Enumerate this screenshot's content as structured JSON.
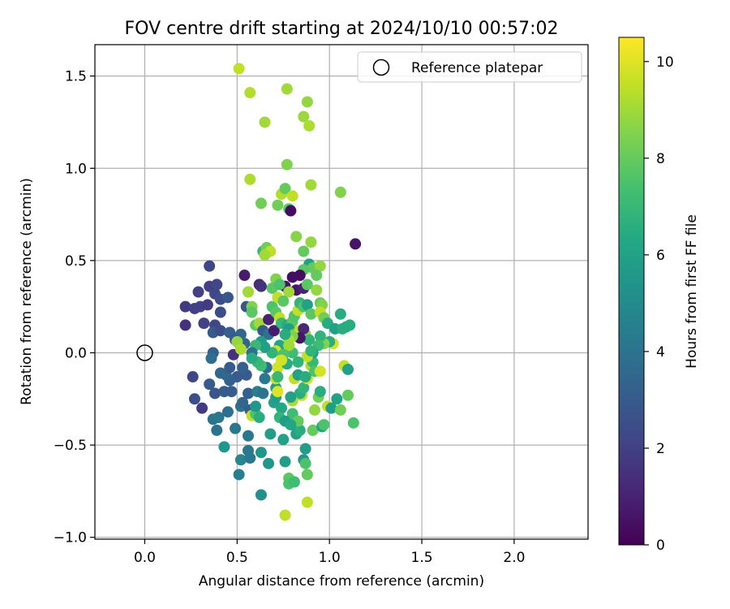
{
  "chart_data": {
    "type": "scatter",
    "title": "FOV centre drift starting at 2024/10/10 00:57:02",
    "xlabel": "Angular distance from reference (arcmin)",
    "ylabel": "Rotation from reference (arcmin)",
    "xlim": [
      -0.27,
      2.4
    ],
    "ylim": [
      -1.01,
      1.67
    ],
    "xticks": [
      0.0,
      0.5,
      1.0,
      1.5,
      2.0
    ],
    "xtick_labels": [
      "0.0",
      "0.5",
      "1.0",
      "1.5",
      "2.0"
    ],
    "yticks": [
      -1.0,
      -0.5,
      0.0,
      0.5,
      1.0,
      1.5
    ],
    "ytick_labels": [
      "−1.0",
      "−0.5",
      "0.0",
      "0.5",
      "1.0",
      "1.5"
    ],
    "grid": true,
    "legend": {
      "position": "top-right",
      "entries": [
        "Reference platepar"
      ]
    },
    "colorbar": {
      "label": "Hours from first FF file",
      "range": [
        0,
        10.5
      ],
      "ticks": [
        0,
        2,
        4,
        6,
        8,
        10
      ],
      "tick_labels": [
        "0",
        "2",
        "4",
        "6",
        "8",
        "10"
      ],
      "colormap": "viridis"
    },
    "reference_point": {
      "x": 0.0,
      "y": 0.0,
      "label": "Reference platepar"
    },
    "series": [
      {
        "name": "FOV centre drift",
        "points": [
          [
            0.51,
            1.54,
            9.5
          ],
          [
            0.57,
            1.41,
            9.3
          ],
          [
            0.77,
            1.43,
            9.0
          ],
          [
            0.88,
            1.36,
            8.8
          ],
          [
            0.86,
            1.28,
            8.9
          ],
          [
            0.89,
            1.23,
            9.2
          ],
          [
            0.65,
            1.25,
            9.0
          ],
          [
            0.77,
            1.02,
            8.5
          ],
          [
            0.57,
            0.94,
            9.2
          ],
          [
            0.9,
            0.91,
            9.0
          ],
          [
            1.06,
            0.87,
            8.5
          ],
          [
            0.74,
            0.86,
            9.3
          ],
          [
            0.63,
            0.81,
            8.2
          ],
          [
            0.72,
            0.8,
            8.2
          ],
          [
            0.76,
            0.89,
            8.0
          ],
          [
            0.8,
            0.85,
            9.5
          ],
          [
            0.78,
            0.78,
            7.8
          ],
          [
            0.79,
            0.77,
            0.4
          ],
          [
            1.14,
            0.59,
            0.6
          ],
          [
            0.82,
            0.63,
            8.6
          ],
          [
            0.86,
            0.55,
            8.0
          ],
          [
            0.9,
            0.6,
            8.8
          ],
          [
            0.64,
            0.55,
            7.0
          ],
          [
            0.66,
            0.57,
            8.2
          ],
          [
            0.68,
            0.55,
            9.5
          ],
          [
            0.65,
            0.53,
            9.0
          ],
          [
            0.89,
            0.48,
            6.0
          ],
          [
            0.91,
            0.46,
            8.0
          ],
          [
            0.95,
            0.47,
            8.8
          ],
          [
            0.86,
            0.45,
            7.8
          ],
          [
            0.54,
            0.42,
            0.8
          ],
          [
            0.62,
            0.37,
            1.2
          ],
          [
            0.71,
            0.4,
            8.5
          ],
          [
            0.76,
            0.36,
            0.5
          ],
          [
            0.8,
            0.41,
            0.4
          ],
          [
            0.84,
            0.42,
            0.4
          ],
          [
            0.82,
            0.34,
            0.6
          ],
          [
            0.86,
            0.35,
            1.0
          ],
          [
            0.88,
            0.37,
            7.8
          ],
          [
            0.93,
            0.34,
            8.8
          ],
          [
            0.93,
            0.42,
            8.0
          ],
          [
            0.78,
            0.33,
            9.0
          ],
          [
            0.69,
            0.35,
            7.8
          ],
          [
            0.73,
            0.37,
            7.5
          ],
          [
            0.56,
            0.33,
            9.0
          ],
          [
            0.63,
            0.36,
            1.5
          ],
          [
            0.35,
            0.47,
            2.2
          ],
          [
            0.35,
            0.36,
            2.0
          ],
          [
            0.39,
            0.37,
            2.2
          ],
          [
            0.29,
            0.33,
            2.0
          ],
          [
            0.22,
            0.25,
            1.8
          ],
          [
            0.3,
            0.25,
            2.0
          ],
          [
            0.27,
            0.24,
            2.0
          ],
          [
            0.34,
            0.26,
            1.8
          ],
          [
            0.38,
            0.32,
            2.2
          ],
          [
            0.41,
            0.29,
            2.5
          ],
          [
            0.45,
            0.3,
            2.8
          ],
          [
            0.41,
            0.22,
            2.5
          ],
          [
            0.38,
            0.15,
            2.2
          ],
          [
            0.32,
            0.16,
            2.0
          ],
          [
            0.22,
            0.15,
            1.5
          ],
          [
            0.37,
            0.11,
            3.0
          ],
          [
            0.41,
            0.12,
            2.5
          ],
          [
            0.46,
            0.11,
            3.2
          ],
          [
            0.49,
            0.08,
            3.0
          ],
          [
            0.52,
            0.1,
            3.5
          ],
          [
            0.55,
            0.25,
            2.8
          ],
          [
            0.58,
            0.25,
            8.5
          ],
          [
            0.58,
            0.22,
            7.8
          ],
          [
            0.6,
            0.15,
            7.8
          ],
          [
            0.62,
            0.16,
            9.0
          ],
          [
            0.64,
            0.12,
            3.0
          ],
          [
            0.67,
            0.1,
            4.0
          ],
          [
            0.67,
            0.18,
            1.0
          ],
          [
            0.7,
            0.12,
            0.8
          ],
          [
            0.69,
            0.25,
            7.5
          ],
          [
            0.71,
            0.22,
            7.8
          ],
          [
            0.73,
            0.19,
            9.5
          ],
          [
            0.74,
            0.16,
            7.0
          ],
          [
            0.77,
            0.15,
            6.5
          ],
          [
            0.79,
            0.14,
            9.0
          ],
          [
            0.8,
            0.17,
            7.8
          ],
          [
            0.81,
            0.2,
            7.6
          ],
          [
            0.83,
            0.23,
            9.5
          ],
          [
            0.84,
            0.27,
            6.8
          ],
          [
            0.86,
            0.25,
            7.5
          ],
          [
            0.88,
            0.26,
            6.0
          ],
          [
            0.9,
            0.21,
            7.8
          ],
          [
            0.95,
            0.27,
            8.0
          ],
          [
            0.96,
            0.26,
            8.5
          ],
          [
            0.95,
            0.22,
            9.5
          ],
          [
            0.97,
            0.19,
            8.2
          ],
          [
            0.99,
            0.16,
            6.5
          ],
          [
            1.03,
            0.13,
            6.0
          ],
          [
            1.06,
            0.21,
            6.5
          ],
          [
            1.07,
            0.13,
            6.5
          ],
          [
            1.09,
            0.14,
            6.5
          ],
          [
            1.11,
            0.15,
            6.5
          ],
          [
            0.72,
            0.3,
            9.5
          ],
          [
            0.75,
            0.28,
            7.8
          ],
          [
            0.78,
            0.13,
            5.8
          ],
          [
            0.81,
            0.1,
            8.2
          ],
          [
            0.84,
            0.12,
            9.5
          ],
          [
            0.87,
            0.1,
            8.8
          ],
          [
            0.89,
            0.07,
            6.8
          ],
          [
            0.86,
            0.13,
            1.2
          ],
          [
            0.84,
            0.08,
            0.6
          ],
          [
            0.8,
            0.09,
            8.5
          ],
          [
            0.78,
            0.07,
            9.2
          ],
          [
            0.76,
            0.1,
            6.5
          ],
          [
            0.73,
            0.04,
            6.2
          ],
          [
            0.71,
            0.01,
            9.8
          ],
          [
            0.69,
            0.0,
            6.8
          ],
          [
            0.65,
            0.03,
            6.0
          ],
          [
            0.63,
            0.06,
            5.8
          ],
          [
            0.6,
            0.04,
            7.0
          ],
          [
            0.58,
            0.0,
            3.8
          ],
          [
            0.54,
            0.05,
            3.5
          ],
          [
            0.52,
            0.03,
            3.2
          ],
          [
            0.49,
            0.07,
            3.0
          ],
          [
            0.48,
            -0.01,
            1.5
          ],
          [
            0.5,
            0.06,
            8.8
          ],
          [
            0.52,
            0.02,
            9.2
          ],
          [
            0.37,
            0.0,
            3.2
          ],
          [
            0.36,
            -0.03,
            3.8
          ],
          [
            0.26,
            -0.13,
            2.2
          ],
          [
            0.27,
            -0.25,
            2.5
          ],
          [
            0.31,
            -0.3,
            1.8
          ],
          [
            0.35,
            -0.17,
            3.0
          ],
          [
            0.38,
            -0.22,
            2.8
          ],
          [
            0.37,
            -0.36,
            4.0
          ],
          [
            0.4,
            -0.35,
            4.2
          ],
          [
            0.39,
            -0.42,
            4.0
          ],
          [
            0.43,
            -0.51,
            5.5
          ],
          [
            0.45,
            -0.32,
            3.8
          ],
          [
            0.49,
            -0.41,
            4.2
          ],
          [
            0.51,
            -0.66,
            4.5
          ],
          [
            0.52,
            -0.58,
            4.8
          ],
          [
            0.52,
            -0.29,
            4.0
          ],
          [
            0.53,
            -0.27,
            3.5
          ],
          [
            0.56,
            -0.45,
            4.2
          ],
          [
            0.56,
            -0.53,
            4.2
          ],
          [
            0.57,
            -0.57,
            4.2
          ],
          [
            0.56,
            -0.22,
            3.2
          ],
          [
            0.57,
            -0.31,
            3.0
          ],
          [
            0.58,
            -0.34,
            9.5
          ],
          [
            0.6,
            -0.33,
            7.5
          ],
          [
            0.62,
            -0.35,
            6.5
          ],
          [
            0.6,
            -0.29,
            5.5
          ],
          [
            0.61,
            -0.21,
            4.5
          ],
          [
            0.64,
            -0.22,
            4.0
          ],
          [
            0.65,
            -0.14,
            4.2
          ],
          [
            0.66,
            -0.08,
            3.8
          ],
          [
            0.63,
            -0.07,
            7.2
          ],
          [
            0.61,
            -0.05,
            7.0
          ],
          [
            0.58,
            -0.03,
            6.5
          ],
          [
            0.55,
            -0.12,
            3.0
          ],
          [
            0.53,
            -0.08,
            3.2
          ],
          [
            0.5,
            -0.13,
            3.0
          ],
          [
            0.46,
            -0.15,
            3.2
          ],
          [
            0.44,
            -0.12,
            3.5
          ],
          [
            0.46,
            -0.08,
            3.0
          ],
          [
            0.41,
            -0.11,
            3.5
          ],
          [
            0.43,
            -0.21,
            3.0
          ],
          [
            0.47,
            -0.21,
            3.0
          ],
          [
            0.63,
            -0.54,
            5.5
          ],
          [
            0.63,
            -0.77,
            5.2
          ],
          [
            0.67,
            -0.6,
            5.5
          ],
          [
            0.68,
            -0.44,
            5.8
          ],
          [
            0.7,
            -0.27,
            6.0
          ],
          [
            0.71,
            -0.24,
            5.8
          ],
          [
            0.71,
            -0.19,
            6.0
          ],
          [
            0.72,
            -0.08,
            9.8
          ],
          [
            0.71,
            -0.14,
            9.6
          ],
          [
            0.72,
            -0.21,
            10.0
          ],
          [
            0.74,
            -0.3,
            6.3
          ],
          [
            0.75,
            -0.47,
            6.0
          ],
          [
            0.76,
            -0.59,
            5.8
          ],
          [
            0.76,
            -0.88,
            9.5
          ],
          [
            0.78,
            -0.68,
            7.8
          ],
          [
            0.78,
            -0.71,
            7.5
          ],
          [
            0.81,
            -0.7,
            7.2
          ],
          [
            0.82,
            -0.44,
            6.0
          ],
          [
            0.84,
            -0.42,
            6.5
          ],
          [
            0.86,
            -0.58,
            5.5
          ],
          [
            0.87,
            -0.52,
            5.8
          ],
          [
            0.87,
            -0.6,
            7.5
          ],
          [
            0.88,
            -0.66,
            8.0
          ],
          [
            0.88,
            -0.81,
            9.5
          ],
          [
            0.8,
            -0.33,
            7.2
          ],
          [
            0.83,
            -0.37,
            8.0
          ],
          [
            0.85,
            -0.23,
            9.5
          ],
          [
            0.84,
            -0.22,
            6.5
          ],
          [
            0.86,
            -0.19,
            6.8
          ],
          [
            0.88,
            -0.14,
            9.8
          ],
          [
            0.9,
            -0.07,
            9.2
          ],
          [
            0.91,
            -0.05,
            7.0
          ],
          [
            0.92,
            -0.1,
            7.5
          ],
          [
            0.95,
            -0.1,
            9.8
          ],
          [
            0.92,
            -0.31,
            8.8
          ],
          [
            0.91,
            -0.42,
            8.0
          ],
          [
            0.94,
            -0.24,
            8.2
          ],
          [
            0.95,
            -0.21,
            6.5
          ],
          [
            0.96,
            -0.4,
            6.0
          ],
          [
            0.97,
            -0.39,
            7.5
          ],
          [
            0.99,
            -0.29,
            9.5
          ],
          [
            1.01,
            -0.3,
            5.8
          ],
          [
            1.04,
            -0.25,
            6.0
          ],
          [
            1.06,
            -0.31,
            8.2
          ],
          [
            1.08,
            -0.07,
            9.5
          ],
          [
            1.1,
            -0.23,
            8.0
          ],
          [
            1.1,
            -0.09,
            6.0
          ],
          [
            1.13,
            -0.38,
            7.5
          ],
          [
            1.02,
            0.05,
            9.8
          ],
          [
            1.0,
            0.06,
            6.5
          ],
          [
            0.97,
            0.05,
            8.5
          ],
          [
            0.95,
            0.09,
            6.8
          ],
          [
            0.94,
            0.04,
            7.2
          ],
          [
            0.91,
            0.0,
            6.0
          ],
          [
            0.88,
            -0.02,
            9.5
          ],
          [
            0.9,
            0.01,
            6.8
          ],
          [
            0.83,
            -0.05,
            6.8
          ],
          [
            0.8,
            0.0,
            7.2
          ],
          [
            0.77,
            -0.06,
            6.5
          ],
          [
            0.78,
            0.04,
            9.0
          ],
          [
            0.75,
            -0.01,
            7.5
          ],
          [
            0.74,
            -0.04,
            9.8
          ],
          [
            0.72,
            -0.13,
            7.0
          ],
          [
            0.73,
            -0.35,
            6.8
          ],
          [
            0.76,
            -0.37,
            5.8
          ],
          [
            0.79,
            -0.39,
            6.2
          ],
          [
            0.8,
            -0.26,
            9.2
          ],
          [
            0.79,
            -0.24,
            6.0
          ],
          [
            0.81,
            -0.14,
            9.5
          ],
          [
            0.83,
            -0.12,
            6.0
          ],
          [
            0.87,
            -0.13,
            6.5
          ]
        ]
      }
    ]
  }
}
